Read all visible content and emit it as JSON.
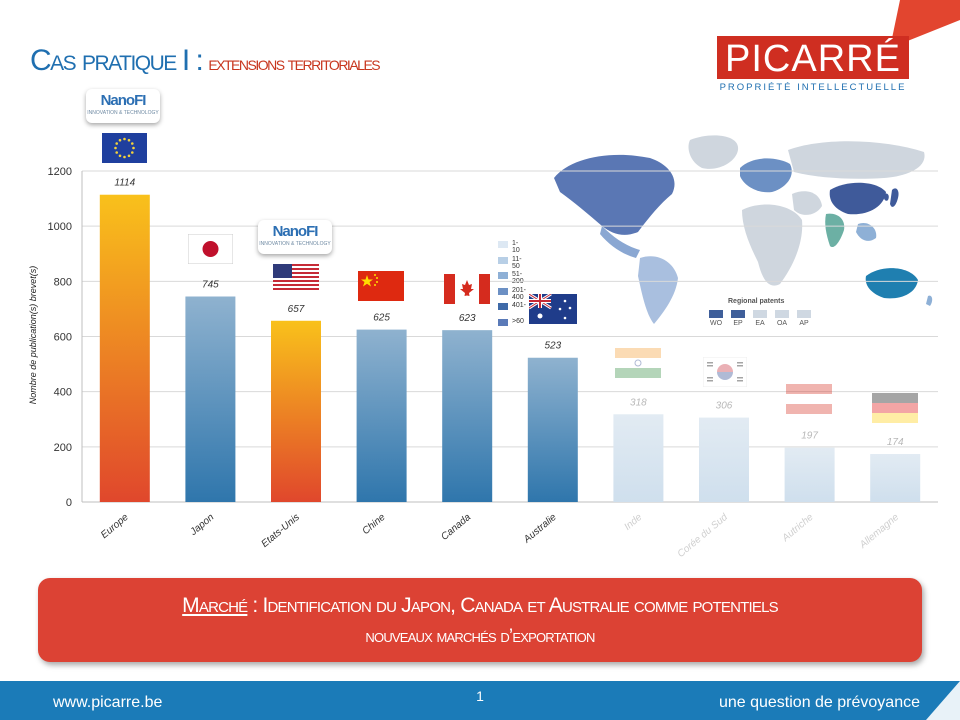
{
  "title": {
    "part1": "Cas pratique",
    "part2": "I :",
    "part3": "extensions territoriales"
  },
  "logo": {
    "name": "PICARRÉ",
    "subtitle": "PROPRIÉTÉ INTELLECTUELLE"
  },
  "badges": [
    {
      "text": "NanoFI",
      "sub": "INNOVATION & TECHNOLOGY"
    },
    {
      "text": "NanoFI",
      "sub": "INNOVATION & TECHNOLOGY"
    }
  ],
  "flags": [
    "eu-flag",
    "japan-flag",
    "usa-flag",
    "china-flag",
    "canada-flag",
    "australia-flag",
    "india-flag",
    "south-korea-flag",
    "austria-flag",
    "germany-flag"
  ],
  "map_legend": {
    "ranges": [
      "1-10",
      "11-50",
      "51-200",
      "201-400",
      "401-",
      ">60"
    ],
    "colors": [
      "#dde8f3",
      "#b8cfe6",
      "#8eb0d6",
      "#6c90c4",
      "#3f6aa8",
      "#5a7ab8"
    ],
    "regional_title": "Regional patents",
    "regional": [
      "WO",
      "EP",
      "EA",
      "OA",
      "AP"
    ],
    "regional_colors": [
      "#3f5f9a",
      "#3f5f9a",
      "#cfd8e2",
      "#cfd8e2",
      "#cfd8e2"
    ]
  },
  "chart_data": {
    "type": "bar",
    "title": "",
    "xlabel": "",
    "ylabel": "Nombre de publication(s) brevet(s)",
    "ylim": [
      0,
      1200
    ],
    "yticks": [
      0,
      200,
      400,
      600,
      800,
      1000,
      1200
    ],
    "grid": true,
    "categories": [
      "Europe",
      "Japon",
      "Etats-Unis",
      "Chine",
      "Canada",
      "Australie",
      "Inde",
      "Corée du Sud",
      "Autriche",
      "Allemagne"
    ],
    "values": [
      1114,
      745,
      657,
      625,
      623,
      523,
      318,
      306,
      197,
      174
    ],
    "colors": {
      "highlight": "#f5b21b",
      "normal": "#4f8ec0",
      "faded": "#dbe6f0"
    }
  },
  "callout": {
    "word": "Marché",
    "line1": " : Identification du Japon, Canada et Australie comme potentiels",
    "line2": "nouveaux marchés d’exportation"
  },
  "footer": {
    "website": "www.picarre.be",
    "page": "1",
    "tagline": "une question de prévoyance"
  }
}
